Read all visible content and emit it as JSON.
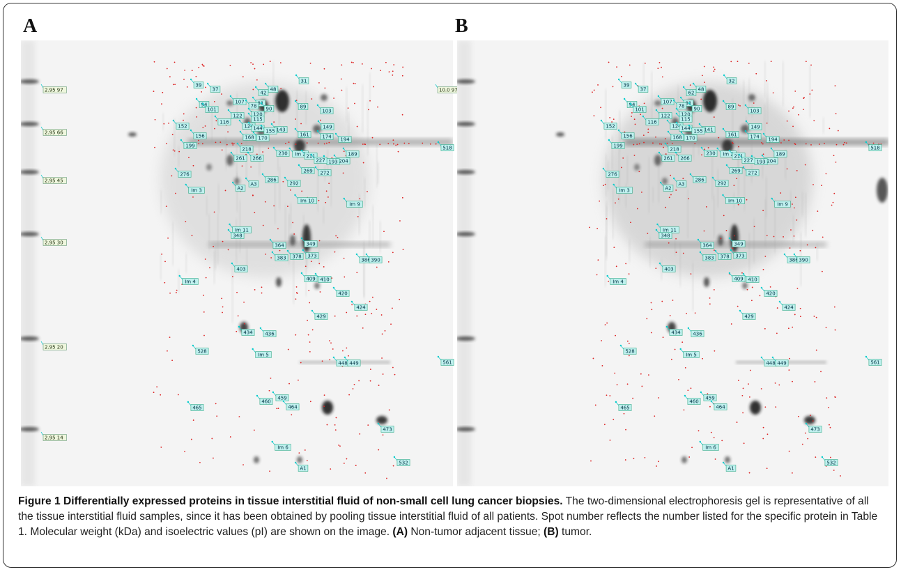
{
  "figure": {
    "panels": [
      {
        "letter": "A",
        "markers": [
          "2.95 97",
          "2.95 66",
          "2.95 45",
          "2.95 30",
          "2.95 20",
          "2.95 14",
          "10.0 97"
        ],
        "spots": [
          "39",
          "37",
          "31",
          "48",
          "42",
          "107",
          "81",
          "78",
          "94",
          "101",
          "90",
          "89",
          "103",
          "120",
          "122",
          "115",
          "116",
          "152",
          "124",
          "144",
          "143",
          "155",
          "149",
          "161",
          "174",
          "194",
          "156",
          "168",
          "170",
          "199",
          "218",
          "230",
          "Im 2",
          "211",
          "189",
          "204",
          "193",
          "227",
          "261",
          "266",
          "269",
          "272",
          "276",
          "286",
          "292",
          "A2",
          "A3",
          "Im 3",
          "Im 10",
          "Im 9",
          "Im 11",
          "348",
          "364",
          "349",
          "383",
          "378",
          "373",
          "386",
          "390",
          "403",
          "Im 4",
          "409",
          "410",
          "420",
          "424",
          "429",
          "434",
          "436",
          "528",
          "Im 5",
          "448",
          "449",
          "459",
          "460",
          "464",
          "465",
          "473",
          "Im 6",
          "532",
          "A1",
          "518",
          "561"
        ]
      },
      {
        "letter": "B",
        "markers": [],
        "spots": [
          "39",
          "37",
          "32",
          "48",
          "62",
          "107",
          "81",
          "78",
          "94",
          "101",
          "90",
          "89",
          "103",
          "120",
          "122",
          "115",
          "116",
          "152",
          "124",
          "144",
          "141",
          "155",
          "149",
          "161",
          "174",
          "194",
          "156",
          "168",
          "170",
          "199",
          "218",
          "230",
          "Im 2",
          "211",
          "189",
          "204",
          "193",
          "227",
          "261",
          "266",
          "269",
          "272",
          "276",
          "286",
          "292",
          "A2",
          "A3",
          "Im 3",
          "Im 10",
          "Im 9",
          "Im 11",
          "348",
          "364",
          "349",
          "383",
          "378",
          "373",
          "386",
          "390",
          "403",
          "Im 4",
          "409",
          "410",
          "420",
          "424",
          "429",
          "434",
          "436",
          "528",
          "Im 5",
          "448",
          "449",
          "459",
          "460",
          "464",
          "465",
          "473",
          "Im 6",
          "532",
          "A1",
          "518",
          "561"
        ]
      }
    ],
    "caption": {
      "title": "Figure 1 Differentially expressed proteins in tissue interstitial fluid of non-small cell lung cancer biopsies.",
      "text": " The two-dimensional electrophoresis gel is representative of all the tissue interstitial fluid samples, since it has been obtained by pooling tissue interstitial fluid of all patients. Spot number reflects the number listed for the specific protein in Table 1. Molecular weight (kDa) and isoelectric values (pI) are shown on the image. ",
      "a_label": "(A)",
      "a_text": " Non-tumor adjacent tissue; ",
      "b_label": "(B)",
      "b_text": " tumor."
    }
  }
}
